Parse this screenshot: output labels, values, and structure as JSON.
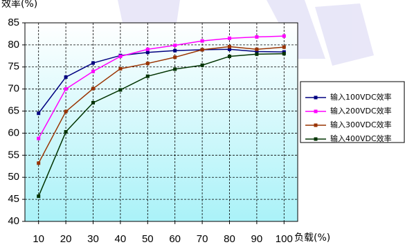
{
  "chart_data": {
    "type": "line",
    "ylabel": "效率(%)",
    "xlabel": "负载(%)",
    "x": [
      10,
      20,
      30,
      40,
      50,
      60,
      70,
      80,
      90,
      100
    ],
    "xlim": [
      5,
      105
    ],
    "ylim": [
      40,
      85
    ],
    "yticks": [
      40,
      45,
      50,
      55,
      60,
      65,
      70,
      75,
      80,
      85
    ],
    "grid": true,
    "legend": "right",
    "series": [
      {
        "name": "输入100VDC效率",
        "color": "#000080",
        "values": [
          64.5,
          72.7,
          75.9,
          77.6,
          78.3,
          78.7,
          78.9,
          79.0,
          78.5,
          78.4
        ]
      },
      {
        "name": "输入200VDC效率",
        "color": "#ff00ff",
        "values": [
          58.8,
          70.0,
          74.0,
          77.4,
          79.0,
          79.9,
          80.9,
          81.5,
          81.8,
          82.0
        ]
      },
      {
        "name": "输入300VDC效率",
        "color": "#993300",
        "values": [
          53.2,
          64.9,
          70.1,
          74.6,
          75.8,
          77.2,
          78.9,
          79.6,
          79.0,
          79.5
        ]
      },
      {
        "name": "输入400VDC效率",
        "color": "#003300",
        "values": [
          45.7,
          60.3,
          66.9,
          69.8,
          72.9,
          74.5,
          75.4,
          77.4,
          77.9,
          78.0
        ]
      }
    ]
  }
}
